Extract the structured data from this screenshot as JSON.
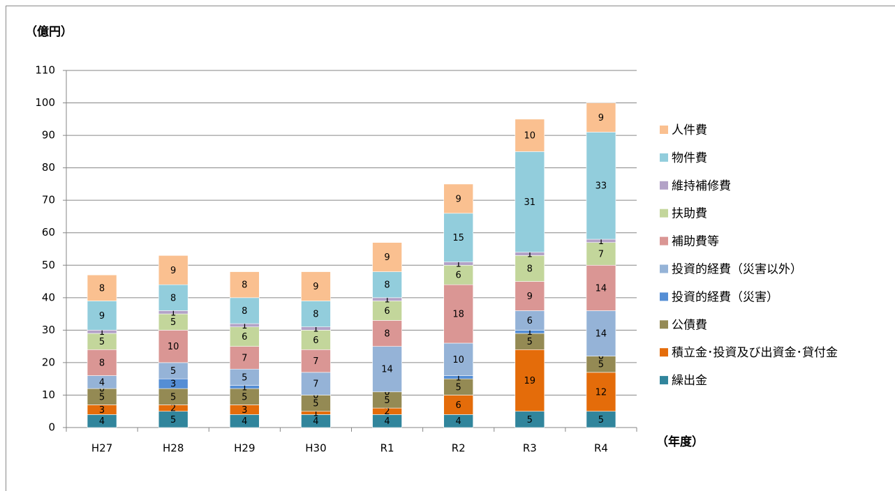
{
  "chart_data": {
    "type": "bar",
    "stacked": true,
    "y_unit_label": "（億円）",
    "x_unit_label": "（年度）",
    "categories": [
      "H27",
      "H28",
      "H29",
      "H30",
      "R1",
      "R2",
      "R3",
      "R4"
    ],
    "ylim": [
      0,
      110
    ],
    "yticks": [
      0,
      10,
      20,
      30,
      40,
      50,
      60,
      70,
      80,
      90,
      100,
      110
    ],
    "grid": true,
    "legend": "right",
    "series": [
      {
        "name": "繰出金",
        "color": "#31859c",
        "values": [
          4,
          5,
          4,
          4,
          4,
          4,
          5,
          5
        ]
      },
      {
        "name": "積立金･投資及び出資金･貸付金",
        "color": "#e46c0a",
        "values": [
          3,
          2,
          3,
          1,
          2,
          6,
          19,
          12
        ]
      },
      {
        "name": "公債費",
        "color": "#948a54",
        "values": [
          5,
          5,
          5,
          5,
          5,
          5,
          5,
          5
        ]
      },
      {
        "name": "投資的経費（災害）",
        "color": "#558ed5",
        "values": [
          0,
          3,
          1,
          0,
          0,
          1,
          1,
          0
        ]
      },
      {
        "name": "投資的経費（災害以外）",
        "color": "#95b3d7",
        "values": [
          4,
          5,
          5,
          7,
          14,
          10,
          6,
          14
        ]
      },
      {
        "name": "補助費等",
        "color": "#da9694",
        "values": [
          8,
          10,
          7,
          7,
          8,
          18,
          9,
          14
        ]
      },
      {
        "name": "扶助費",
        "color": "#c3d69b",
        "values": [
          5,
          5,
          6,
          6,
          6,
          6,
          8,
          7
        ]
      },
      {
        "name": "維持補修費",
        "color": "#b3a2c7",
        "values": [
          1,
          1,
          1,
          1,
          1,
          1,
          1,
          1
        ]
      },
      {
        "name": "物件費",
        "color": "#92cddc",
        "values": [
          9,
          8,
          8,
          8,
          8,
          15,
          31,
          33
        ]
      },
      {
        "name": "人件費",
        "color": "#fac090",
        "values": [
          8,
          9,
          8,
          9,
          9,
          9,
          10,
          9
        ]
      }
    ]
  }
}
